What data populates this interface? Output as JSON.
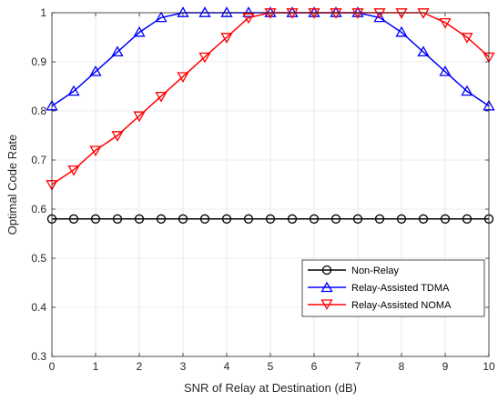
{
  "chart_data": {
    "type": "line",
    "title": "",
    "xlabel": "SNR of Relay at Destination (dB)",
    "ylabel": "Optimal Code Rate",
    "xlim": [
      0,
      10
    ],
    "ylim": [
      0.3,
      1.0
    ],
    "xticks": [
      0,
      1,
      2,
      3,
      4,
      5,
      6,
      7,
      8,
      9,
      10
    ],
    "yticks": [
      0.3,
      0.4,
      0.5,
      0.6,
      0.7,
      0.8,
      0.9,
      1.0
    ],
    "ytick_labels": [
      "0.3",
      "0.4",
      "0.5",
      "0.6",
      "0.7",
      "0.8",
      "0.9",
      "1"
    ],
    "grid": true,
    "legend_position": "bottom-right",
    "x": [
      0,
      0.5,
      1,
      1.5,
      2,
      2.5,
      3,
      3.5,
      4,
      4.5,
      5,
      5.5,
      6,
      6.5,
      7,
      7.5,
      8,
      8.5,
      9,
      9.5,
      10
    ],
    "series": [
      {
        "name": "Non-Relay",
        "color": "#000000",
        "marker": "circle",
        "values": [
          0.58,
          0.58,
          0.58,
          0.58,
          0.58,
          0.58,
          0.58,
          0.58,
          0.58,
          0.58,
          0.58,
          0.58,
          0.58,
          0.58,
          0.58,
          0.58,
          0.58,
          0.58,
          0.58,
          0.58,
          0.58
        ]
      },
      {
        "name": "Relay-Assisted TDMA",
        "color": "#0000ff",
        "marker": "triangle-up",
        "values": [
          0.81,
          0.84,
          0.88,
          0.92,
          0.96,
          0.99,
          1.0,
          1.0,
          1.0,
          1.0,
          1.0,
          1.0,
          1.0,
          1.0,
          1.0,
          0.99,
          0.96,
          0.92,
          0.88,
          0.84,
          0.81
        ]
      },
      {
        "name": "Relay-Assisted NOMA",
        "color": "#ff0000",
        "marker": "triangle-down",
        "values": [
          0.65,
          0.68,
          0.72,
          0.75,
          0.79,
          0.83,
          0.87,
          0.91,
          0.95,
          0.99,
          1.0,
          1.0,
          1.0,
          1.0,
          1.0,
          1.0,
          1.0,
          1.0,
          0.98,
          0.95,
          0.91
        ]
      }
    ]
  }
}
